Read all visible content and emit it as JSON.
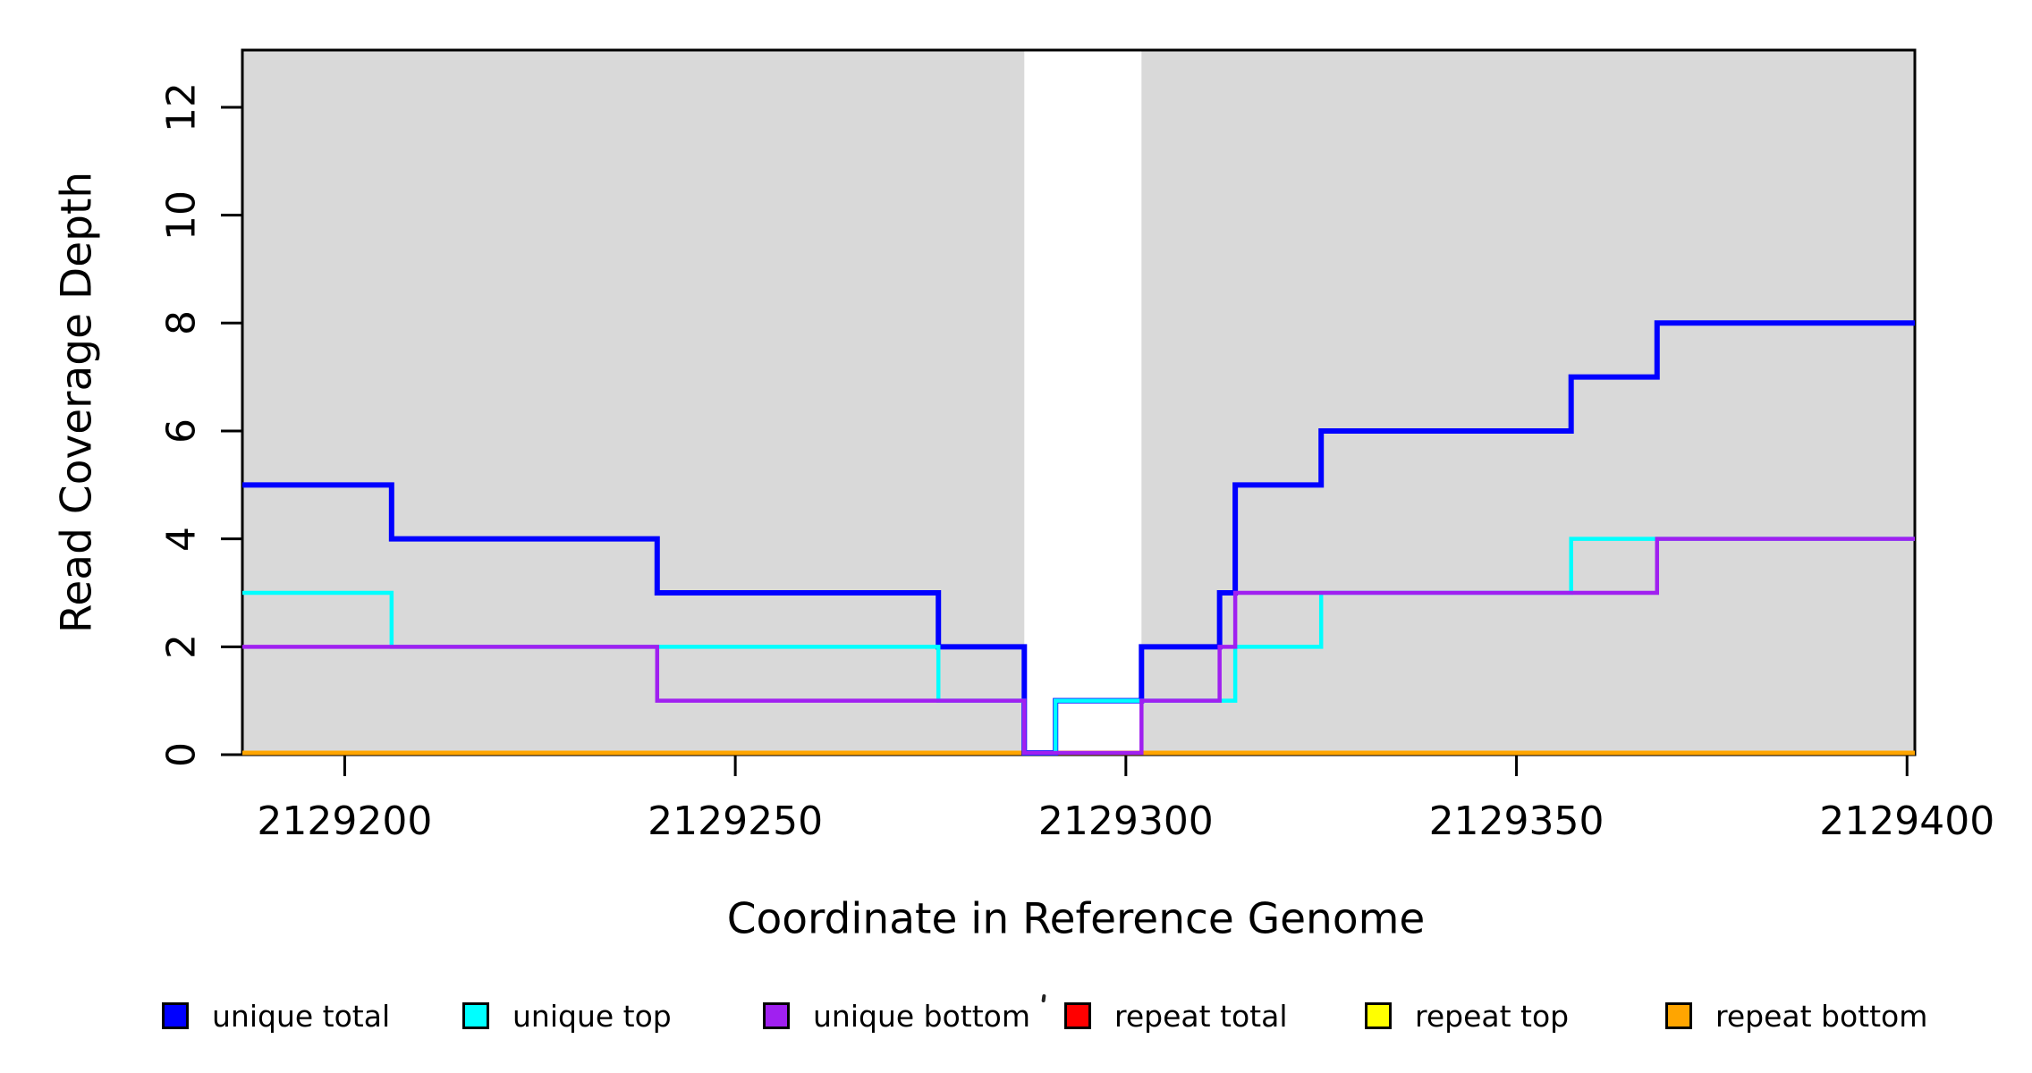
{
  "chart_data": {
    "type": "line",
    "subtype": "step",
    "title": "",
    "xlabel": "Coordinate in Reference Genome",
    "ylabel": "Read Coverage Depth",
    "xlim": [
      2129186.9,
      2129401
    ],
    "ylim": [
      0,
      13.06
    ],
    "x_ticks": [
      2129200,
      2129250,
      2129300,
      2129350,
      2129400
    ],
    "y_ticks": [
      0,
      2,
      4,
      6,
      8,
      10,
      12
    ],
    "grid": false,
    "legend_position": "bottom",
    "masked_color": "#D9D9D9",
    "masked_regions": [
      [
        2129186.9,
        2129287
      ],
      [
        2129302,
        2129401
      ]
    ],
    "unmasked_gap": [
      2129287,
      2129302
    ],
    "x_end": 2129401,
    "series": [
      {
        "name": "repeat total",
        "color": "#FF0000",
        "lw": 4,
        "points": [
          [
            2129186.9,
            0
          ]
        ]
      },
      {
        "name": "repeat top",
        "color": "#FFFF00",
        "lw": 4,
        "points": [
          [
            2129186.9,
            0
          ]
        ]
      },
      {
        "name": "repeat bottom",
        "color": "#FFA500",
        "lw": 5,
        "points": [
          [
            2129186.9,
            0
          ]
        ]
      },
      {
        "name": "unique total",
        "color": "#0000FF",
        "lw": 6,
        "points": [
          [
            2129186.9,
            5
          ],
          [
            2129206,
            4
          ],
          [
            2129240,
            3
          ],
          [
            2129276,
            2
          ],
          [
            2129287,
            0
          ],
          [
            2129291,
            1
          ],
          [
            2129302,
            2
          ],
          [
            2129312,
            3
          ],
          [
            2129314,
            5
          ],
          [
            2129325,
            6
          ],
          [
            2129357,
            7
          ],
          [
            2129368,
            8
          ]
        ]
      },
      {
        "name": "unique top",
        "color": "#00FFFF",
        "lw": 4.5,
        "points": [
          [
            2129186.9,
            3
          ],
          [
            2129206,
            2
          ],
          [
            2129276,
            1
          ],
          [
            2129287,
            0
          ],
          [
            2129291,
            1
          ],
          [
            2129314,
            2
          ],
          [
            2129325,
            3
          ],
          [
            2129357,
            4
          ]
        ]
      },
      {
        "name": "unique bottom",
        "color": "#A020F0",
        "lw": 4.5,
        "points": [
          [
            2129186.9,
            2
          ],
          [
            2129240,
            1
          ],
          [
            2129287,
            0
          ],
          [
            2129302,
            1
          ],
          [
            2129312,
            2
          ],
          [
            2129314,
            3
          ],
          [
            2129368,
            4
          ]
        ]
      }
    ],
    "legend": {
      "items": [
        {
          "label": "unique total",
          "color": "#0000FF"
        },
        {
          "label": "unique top",
          "color": "#00FFFF"
        },
        {
          "label": "unique bottom",
          "color": "#A020F0"
        },
        {
          "label": "repeat total",
          "color": "#FF0000"
        },
        {
          "label": "repeat top",
          "color": "#FFFF00"
        },
        {
          "label": "repeat bottom",
          "color": "#FFA500"
        }
      ]
    }
  }
}
